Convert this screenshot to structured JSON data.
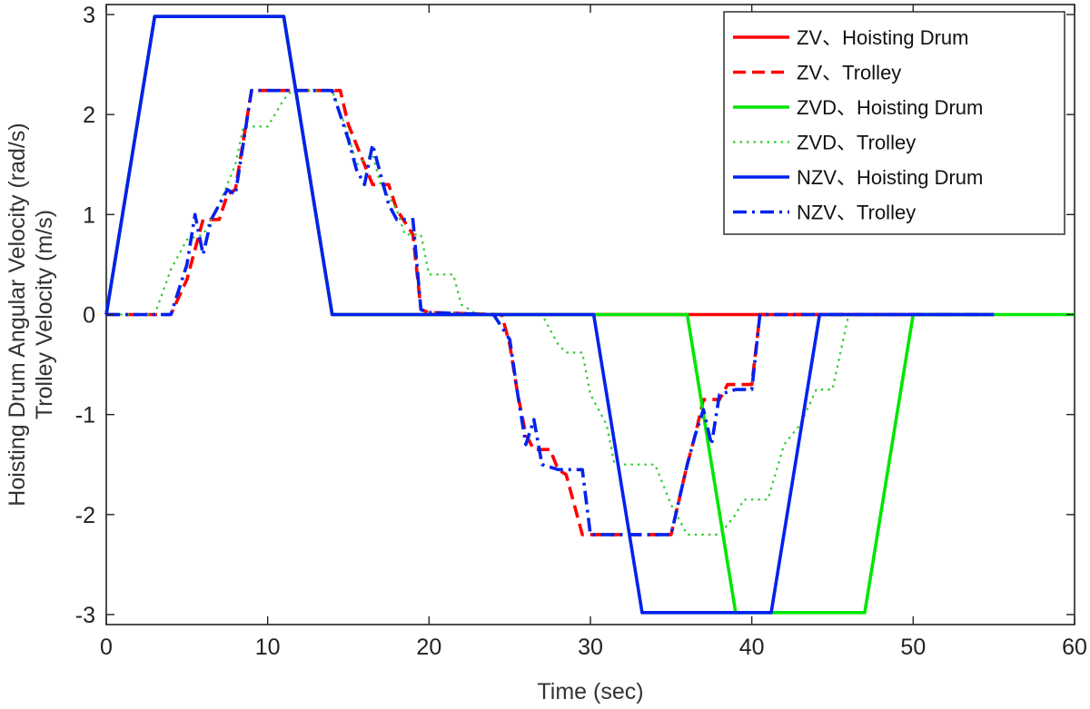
{
  "chart_data": {
    "type": "line",
    "title": "",
    "xlabel": "Time (sec)",
    "ylabel_lines": [
      "Hoisting Drum Angular Velocity (rad/s)",
      "Trolley Velocity (m/s)"
    ],
    "xlim": [
      0,
      60
    ],
    "ylim": [
      -3.1,
      3.1
    ],
    "x_ticks": [
      "0",
      "10",
      "20",
      "30",
      "40",
      "50",
      "60"
    ],
    "y_ticks": [
      "3",
      "2",
      "1",
      "0",
      "-1",
      "-2",
      "-3"
    ],
    "grid": false,
    "legend_position": "top-right",
    "series": [
      {
        "name": "ZV、Hoisting Drum",
        "color": "#ff0000",
        "style": "solid",
        "points": [
          [
            0,
            0
          ],
          [
            3,
            2.98
          ],
          [
            11,
            2.98
          ],
          [
            14,
            0
          ],
          [
            55,
            0
          ]
        ]
      },
      {
        "name": "ZV、Trolley",
        "color": "#ff0000",
        "style": "dashed",
        "points": [
          [
            0,
            0
          ],
          [
            4,
            0
          ],
          [
            5,
            0.35
          ],
          [
            5.5,
            0.65
          ],
          [
            6,
            0.95
          ],
          [
            7,
            0.95
          ],
          [
            7.5,
            1.2
          ],
          [
            8,
            1.25
          ],
          [
            9,
            2.24
          ],
          [
            14.5,
            2.24
          ],
          [
            15,
            1.9
          ],
          [
            16,
            1.5
          ],
          [
            16.5,
            1.3
          ],
          [
            17.5,
            1.3
          ],
          [
            18,
            1.05
          ],
          [
            19,
            0.8
          ],
          [
            19.5,
            0.05
          ],
          [
            20,
            0.02
          ],
          [
            24.5,
            0
          ],
          [
            25,
            -0.3
          ],
          [
            25.5,
            -0.8
          ],
          [
            26,
            -1.2
          ],
          [
            26.5,
            -1.35
          ],
          [
            27.5,
            -1.35
          ],
          [
            28,
            -1.55
          ],
          [
            28.5,
            -1.6
          ],
          [
            29.5,
            -2.2
          ],
          [
            35,
            -2.2
          ],
          [
            36,
            -1.5
          ],
          [
            36.5,
            -1.2
          ],
          [
            37,
            -0.85
          ],
          [
            38,
            -0.85
          ],
          [
            38.5,
            -0.7
          ],
          [
            40,
            -0.7
          ],
          [
            40.5,
            0
          ],
          [
            55,
            0
          ]
        ]
      },
      {
        "name": "ZVD、Hoisting Drum",
        "color": "#00e600",
        "style": "solid",
        "points": [
          [
            0,
            0
          ],
          [
            3,
            2.98
          ],
          [
            11,
            2.98
          ],
          [
            14,
            0
          ],
          [
            36,
            0
          ],
          [
            39,
            -2.98
          ],
          [
            47,
            -2.98
          ],
          [
            50,
            0
          ],
          [
            60,
            0
          ]
        ]
      },
      {
        "name": "ZVD、Trolley",
        "color": "#33cc33",
        "style": "dotted",
        "points": [
          [
            0,
            0
          ],
          [
            3,
            0
          ],
          [
            4,
            0.45
          ],
          [
            5,
            0.75
          ],
          [
            6,
            0.8
          ],
          [
            7,
            1.1
          ],
          [
            8,
            1.5
          ],
          [
            8.5,
            1.88
          ],
          [
            10,
            1.88
          ],
          [
            11,
            2.15
          ],
          [
            11.5,
            2.24
          ],
          [
            14,
            2.24
          ],
          [
            15,
            1.8
          ],
          [
            15.5,
            1.5
          ],
          [
            16.5,
            1.6
          ],
          [
            17,
            1.3
          ],
          [
            18,
            1.05
          ],
          [
            18.5,
            0.8
          ],
          [
            19.5,
            0.8
          ],
          [
            20,
            0.4
          ],
          [
            21.5,
            0.4
          ],
          [
            22,
            0.1
          ],
          [
            23,
            0
          ],
          [
            27,
            0
          ],
          [
            28,
            -0.3
          ],
          [
            28.5,
            -0.38
          ],
          [
            29.5,
            -0.38
          ],
          [
            30,
            -0.8
          ],
          [
            31,
            -1.1
          ],
          [
            31.5,
            -1.5
          ],
          [
            34,
            -1.5
          ],
          [
            35,
            -1.9
          ],
          [
            36,
            -2.2
          ],
          [
            38,
            -2.2
          ],
          [
            39,
            -2.0
          ],
          [
            39.5,
            -1.85
          ],
          [
            41,
            -1.85
          ],
          [
            42,
            -1.3
          ],
          [
            43,
            -1.1
          ],
          [
            44,
            -0.75
          ],
          [
            45,
            -0.75
          ],
          [
            46,
            0
          ],
          [
            55,
            0
          ]
        ]
      },
      {
        "name": "NZV、Hoisting Drum",
        "color": "#0022ee",
        "style": "solid",
        "points": [
          [
            0,
            0
          ],
          [
            3,
            2.98
          ],
          [
            11,
            2.98
          ],
          [
            14,
            0
          ],
          [
            30.2,
            0
          ],
          [
            33.2,
            -2.98
          ],
          [
            41.2,
            -2.98
          ],
          [
            44.2,
            0
          ],
          [
            55,
            0
          ]
        ]
      },
      {
        "name": "NZV、Trolley",
        "color": "#0022ee",
        "style": "dashdot",
        "points": [
          [
            0,
            0
          ],
          [
            4,
            0
          ],
          [
            5,
            0.5
          ],
          [
            5.5,
            1.0
          ],
          [
            6,
            0.6
          ],
          [
            6.5,
            0.95
          ],
          [
            7,
            1.1
          ],
          [
            7.5,
            1.25
          ],
          [
            8,
            1.2
          ],
          [
            9,
            2.24
          ],
          [
            14,
            2.24
          ],
          [
            15,
            1.75
          ],
          [
            15.5,
            1.45
          ],
          [
            16,
            1.3
          ],
          [
            16.5,
            1.7
          ],
          [
            17.5,
            1.1
          ],
          [
            18,
            0.95
          ],
          [
            19,
            0.95
          ],
          [
            19.5,
            0.05
          ],
          [
            20,
            0.02
          ],
          [
            24,
            0
          ],
          [
            25,
            -0.25
          ],
          [
            25.5,
            -0.8
          ],
          [
            26,
            -1.3
          ],
          [
            26.5,
            -1.05
          ],
          [
            27,
            -1.5
          ],
          [
            28,
            -1.55
          ],
          [
            29.5,
            -1.55
          ],
          [
            30,
            -2.2
          ],
          [
            35,
            -2.2
          ],
          [
            36,
            -1.5
          ],
          [
            36.5,
            -1.2
          ],
          [
            37,
            -0.95
          ],
          [
            37.5,
            -1.3
          ],
          [
            38,
            -0.8
          ],
          [
            39,
            -0.75
          ],
          [
            40,
            -0.75
          ],
          [
            40.5,
            0
          ],
          [
            55,
            0
          ]
        ]
      }
    ]
  }
}
